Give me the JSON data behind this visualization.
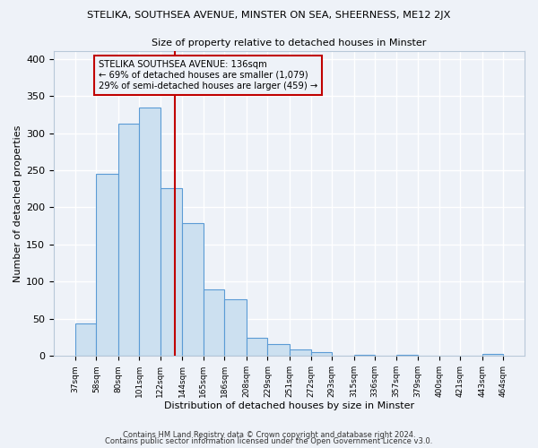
{
  "title_main": "STELIKA, SOUTHSEA AVENUE, MINSTER ON SEA, SHEERNESS, ME12 2JX",
  "title_sub": "Size of property relative to detached houses in Minster",
  "xlabel": "Distribution of detached houses by size in Minster",
  "ylabel": "Number of detached properties",
  "bar_labels": [
    "37sqm",
    "58sqm",
    "80sqm",
    "101sqm",
    "122sqm",
    "144sqm",
    "165sqm",
    "186sqm",
    "208sqm",
    "229sqm",
    "251sqm",
    "272sqm",
    "293sqm",
    "315sqm",
    "336sqm",
    "357sqm",
    "379sqm",
    "400sqm",
    "421sqm",
    "443sqm",
    "464sqm"
  ],
  "bar_values": [
    44,
    245,
    313,
    335,
    226,
    179,
    90,
    76,
    25,
    16,
    9,
    5,
    0,
    1,
    0,
    2,
    0,
    0,
    0,
    3
  ],
  "bar_color_fill": "#cce0f0",
  "bar_color_edge": "#5b9bd5",
  "vline_x": 136,
  "vline_color": "#c00000",
  "annotation_title": "STELIKA SOUTHSEA AVENUE: 136sqm",
  "annotation_line1": "← 69% of detached houses are smaller (1,079)",
  "annotation_line2": "29% of semi-detached houses are larger (459) →",
  "annotation_box_color": "#c00000",
  "ylim": [
    0,
    410
  ],
  "yticks": [
    0,
    50,
    100,
    150,
    200,
    250,
    300,
    350,
    400
  ],
  "footnote1": "Contains HM Land Registry data © Crown copyright and database right 2024.",
  "footnote2": "Contains public sector information licensed under the Open Government Licence v3.0.",
  "bg_color": "#eef2f8",
  "grid_color": "#ffffff"
}
